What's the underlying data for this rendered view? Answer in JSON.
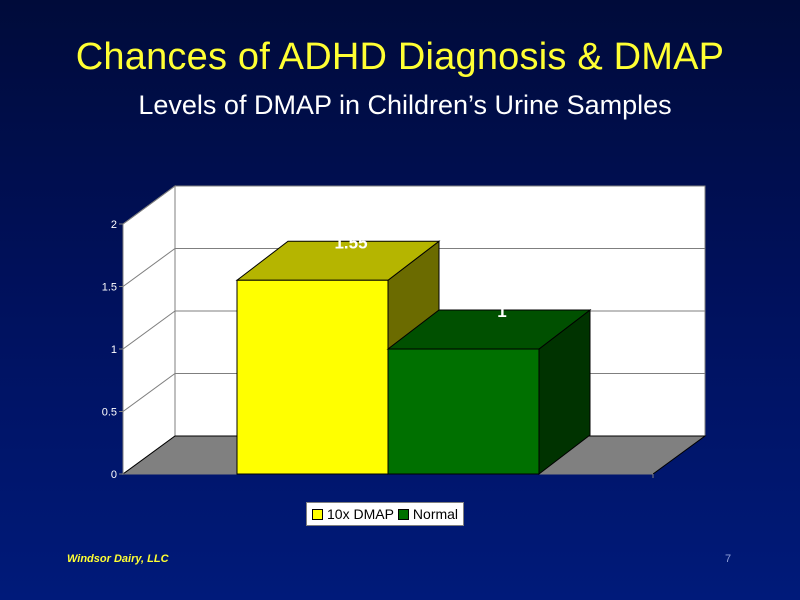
{
  "slide": {
    "title": "Chances of ADHD Diagnosis & DMAP",
    "subtitle": "Levels of DMAP in Children’s Urine Samples",
    "footer_left": "Windsor Dairy, LLC",
    "page_number": "7"
  },
  "chart_data": {
    "type": "bar",
    "style": "3d-column",
    "categories": [
      ""
    ],
    "series": [
      {
        "name": "10x DMAP",
        "values": [
          1.55
        ],
        "color": "#ffff00",
        "side_color": "#6b6b00",
        "top_color": "#b5b500"
      },
      {
        "name": "Normal",
        "values": [
          1
        ],
        "color": "#007000",
        "side_color": "#003300",
        "top_color": "#005000"
      }
    ],
    "data_labels": [
      "1.55",
      "1"
    ],
    "yticks": [
      0,
      0.5,
      1,
      1.5,
      2
    ],
    "ytick_labels": [
      "0",
      "0.5",
      "1",
      "1.5",
      "2"
    ],
    "ylim": [
      0,
      2
    ],
    "grid": true,
    "legend": "bottom",
    "wall_color": "#ffffff",
    "floor_color": "#808080",
    "data_label_color": "#ffffff"
  }
}
